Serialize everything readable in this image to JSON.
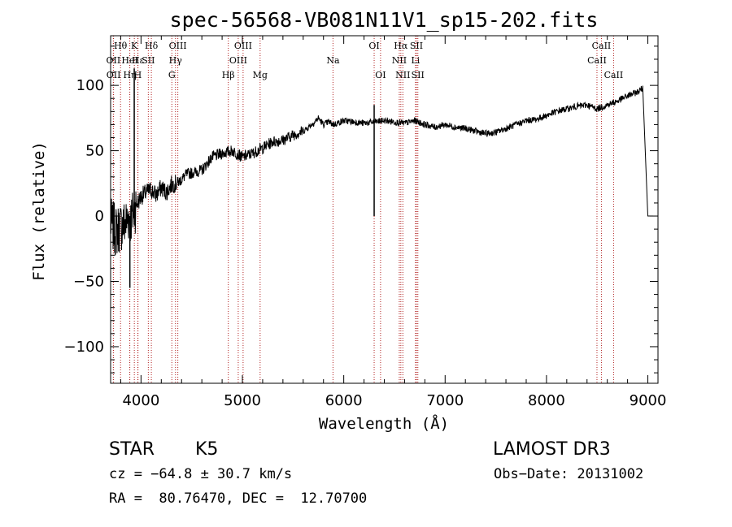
{
  "chart_data": {
    "type": "line",
    "title": "spec-56568-VB081N11V1_sp15-202.fits",
    "xlabel": "Wavelength (Å)",
    "ylabel": "Flux (relative)",
    "xlim": [
      3700,
      9100
    ],
    "ylim": [
      -128,
      138
    ],
    "xticks": [
      4000,
      5000,
      6000,
      7000,
      8000,
      9000
    ],
    "xtick_labels": [
      "4000",
      "5000",
      "6000",
      "7000",
      "8000",
      "9000"
    ],
    "yticks": [
      -100,
      -50,
      0,
      50,
      100
    ],
    "ytick_labels": [
      "−100",
      "−50",
      "0",
      "50",
      "100"
    ],
    "series": [
      {
        "name": "spectrum",
        "x": [
          3700,
          3750,
          3800,
          3850,
          3880,
          3900,
          3950,
          4000,
          4050,
          4100,
          4150,
          4200,
          4250,
          4300,
          4350,
          4400,
          4450,
          4500,
          4600,
          4700,
          4800,
          4900,
          5000,
          5100,
          5200,
          5300,
          5400,
          5500,
          5600,
          5700,
          5750,
          5800,
          5850,
          5900,
          6000,
          6100,
          6200,
          6300,
          6400,
          6500,
          6600,
          6700,
          6800,
          6900,
          7000,
          7100,
          7200,
          7300,
          7400,
          7500,
          7600,
          7700,
          7800,
          7900,
          8000,
          8100,
          8200,
          8300,
          8400,
          8500,
          8600,
          8700,
          8800,
          8900,
          8950,
          9000
        ],
        "y": [
          -5,
          -12,
          -8,
          -5,
          0,
          -3,
          8,
          15,
          18,
          20,
          16,
          22,
          18,
          24,
          25,
          28,
          32,
          33,
          35,
          45,
          48,
          50,
          45,
          48,
          52,
          57,
          58,
          62,
          65,
          71,
          75,
          70,
          72,
          70,
          73,
          72,
          71,
          72,
          73,
          72,
          71,
          73,
          70,
          68,
          70,
          68,
          67,
          65,
          63,
          64,
          67,
          70,
          73,
          74,
          77,
          80,
          82,
          84,
          85,
          82,
          85,
          88,
          92,
          95,
          98,
          0
        ]
      }
    ],
    "spikes": [
      {
        "x": 3933,
        "y": 113
      },
      {
        "x": 3890,
        "y": -55
      },
      {
        "x": 6300,
        "y": 85
      }
    ],
    "lines": [
      {
        "label": "Hθ",
        "wavelength": 3798,
        "row": 1
      },
      {
        "label": "OII",
        "wavelength": 3727,
        "row": 2
      },
      {
        "label": "OII",
        "wavelength": 3729,
        "row": 3
      },
      {
        "label": "K",
        "wavelength": 3934,
        "row": 1
      },
      {
        "label": "Hε",
        "wavelength": 3970,
        "row": 2
      },
      {
        "label": "Hη",
        "wavelength": 3889,
        "row": 3
      },
      {
        "label": "HeI",
        "wavelength": 3889,
        "row": 2
      },
      {
        "label": "H",
        "wavelength": 3968,
        "row": 3
      },
      {
        "label": "Hδ",
        "wavelength": 4102,
        "row": 1
      },
      {
        "label": "SII",
        "wavelength": 4072,
        "row": 2
      },
      {
        "label": "OIII",
        "wavelength": 4363,
        "row": 1
      },
      {
        "label": "Hγ",
        "wavelength": 4340,
        "row": 2
      },
      {
        "label": "G",
        "wavelength": 4304,
        "row": 3
      },
      {
        "label": "Hβ",
        "wavelength": 4861,
        "row": 3
      },
      {
        "label": "OIII",
        "wavelength": 5007,
        "row": 1
      },
      {
        "label": "OIII",
        "wavelength": 4959,
        "row": 2
      },
      {
        "label": "Mg",
        "wavelength": 5175,
        "row": 3
      },
      {
        "label": "Na",
        "wavelength": 5894,
        "row": 2
      },
      {
        "label": "OI",
        "wavelength": 6300,
        "row": 1
      },
      {
        "label": "OI",
        "wavelength": 6363,
        "row": 3
      },
      {
        "label": "Hα",
        "wavelength": 6563,
        "row": 1
      },
      {
        "label": "NII",
        "wavelength": 6548,
        "row": 2
      },
      {
        "label": "NII",
        "wavelength": 6583,
        "row": 3
      },
      {
        "label": "SII",
        "wavelength": 6717,
        "row": 1
      },
      {
        "label": "Li",
        "wavelength": 6708,
        "row": 2
      },
      {
        "label": "SII",
        "wavelength": 6731,
        "row": 3
      },
      {
        "label": "CaII",
        "wavelength": 8542,
        "row": 1
      },
      {
        "label": "CaII",
        "wavelength": 8498,
        "row": 2
      },
      {
        "label": "CaII",
        "wavelength": 8662,
        "row": 3
      }
    ]
  },
  "info": {
    "class": "STAR",
    "subclass": "K5",
    "survey": "LAMOST DR3",
    "cz": "cz = −64.8 ± 30.7 km/s",
    "obs_date": "Obs−Date: 20131002",
    "coords": "RA =  80.76470, DEC =  12.70700"
  }
}
